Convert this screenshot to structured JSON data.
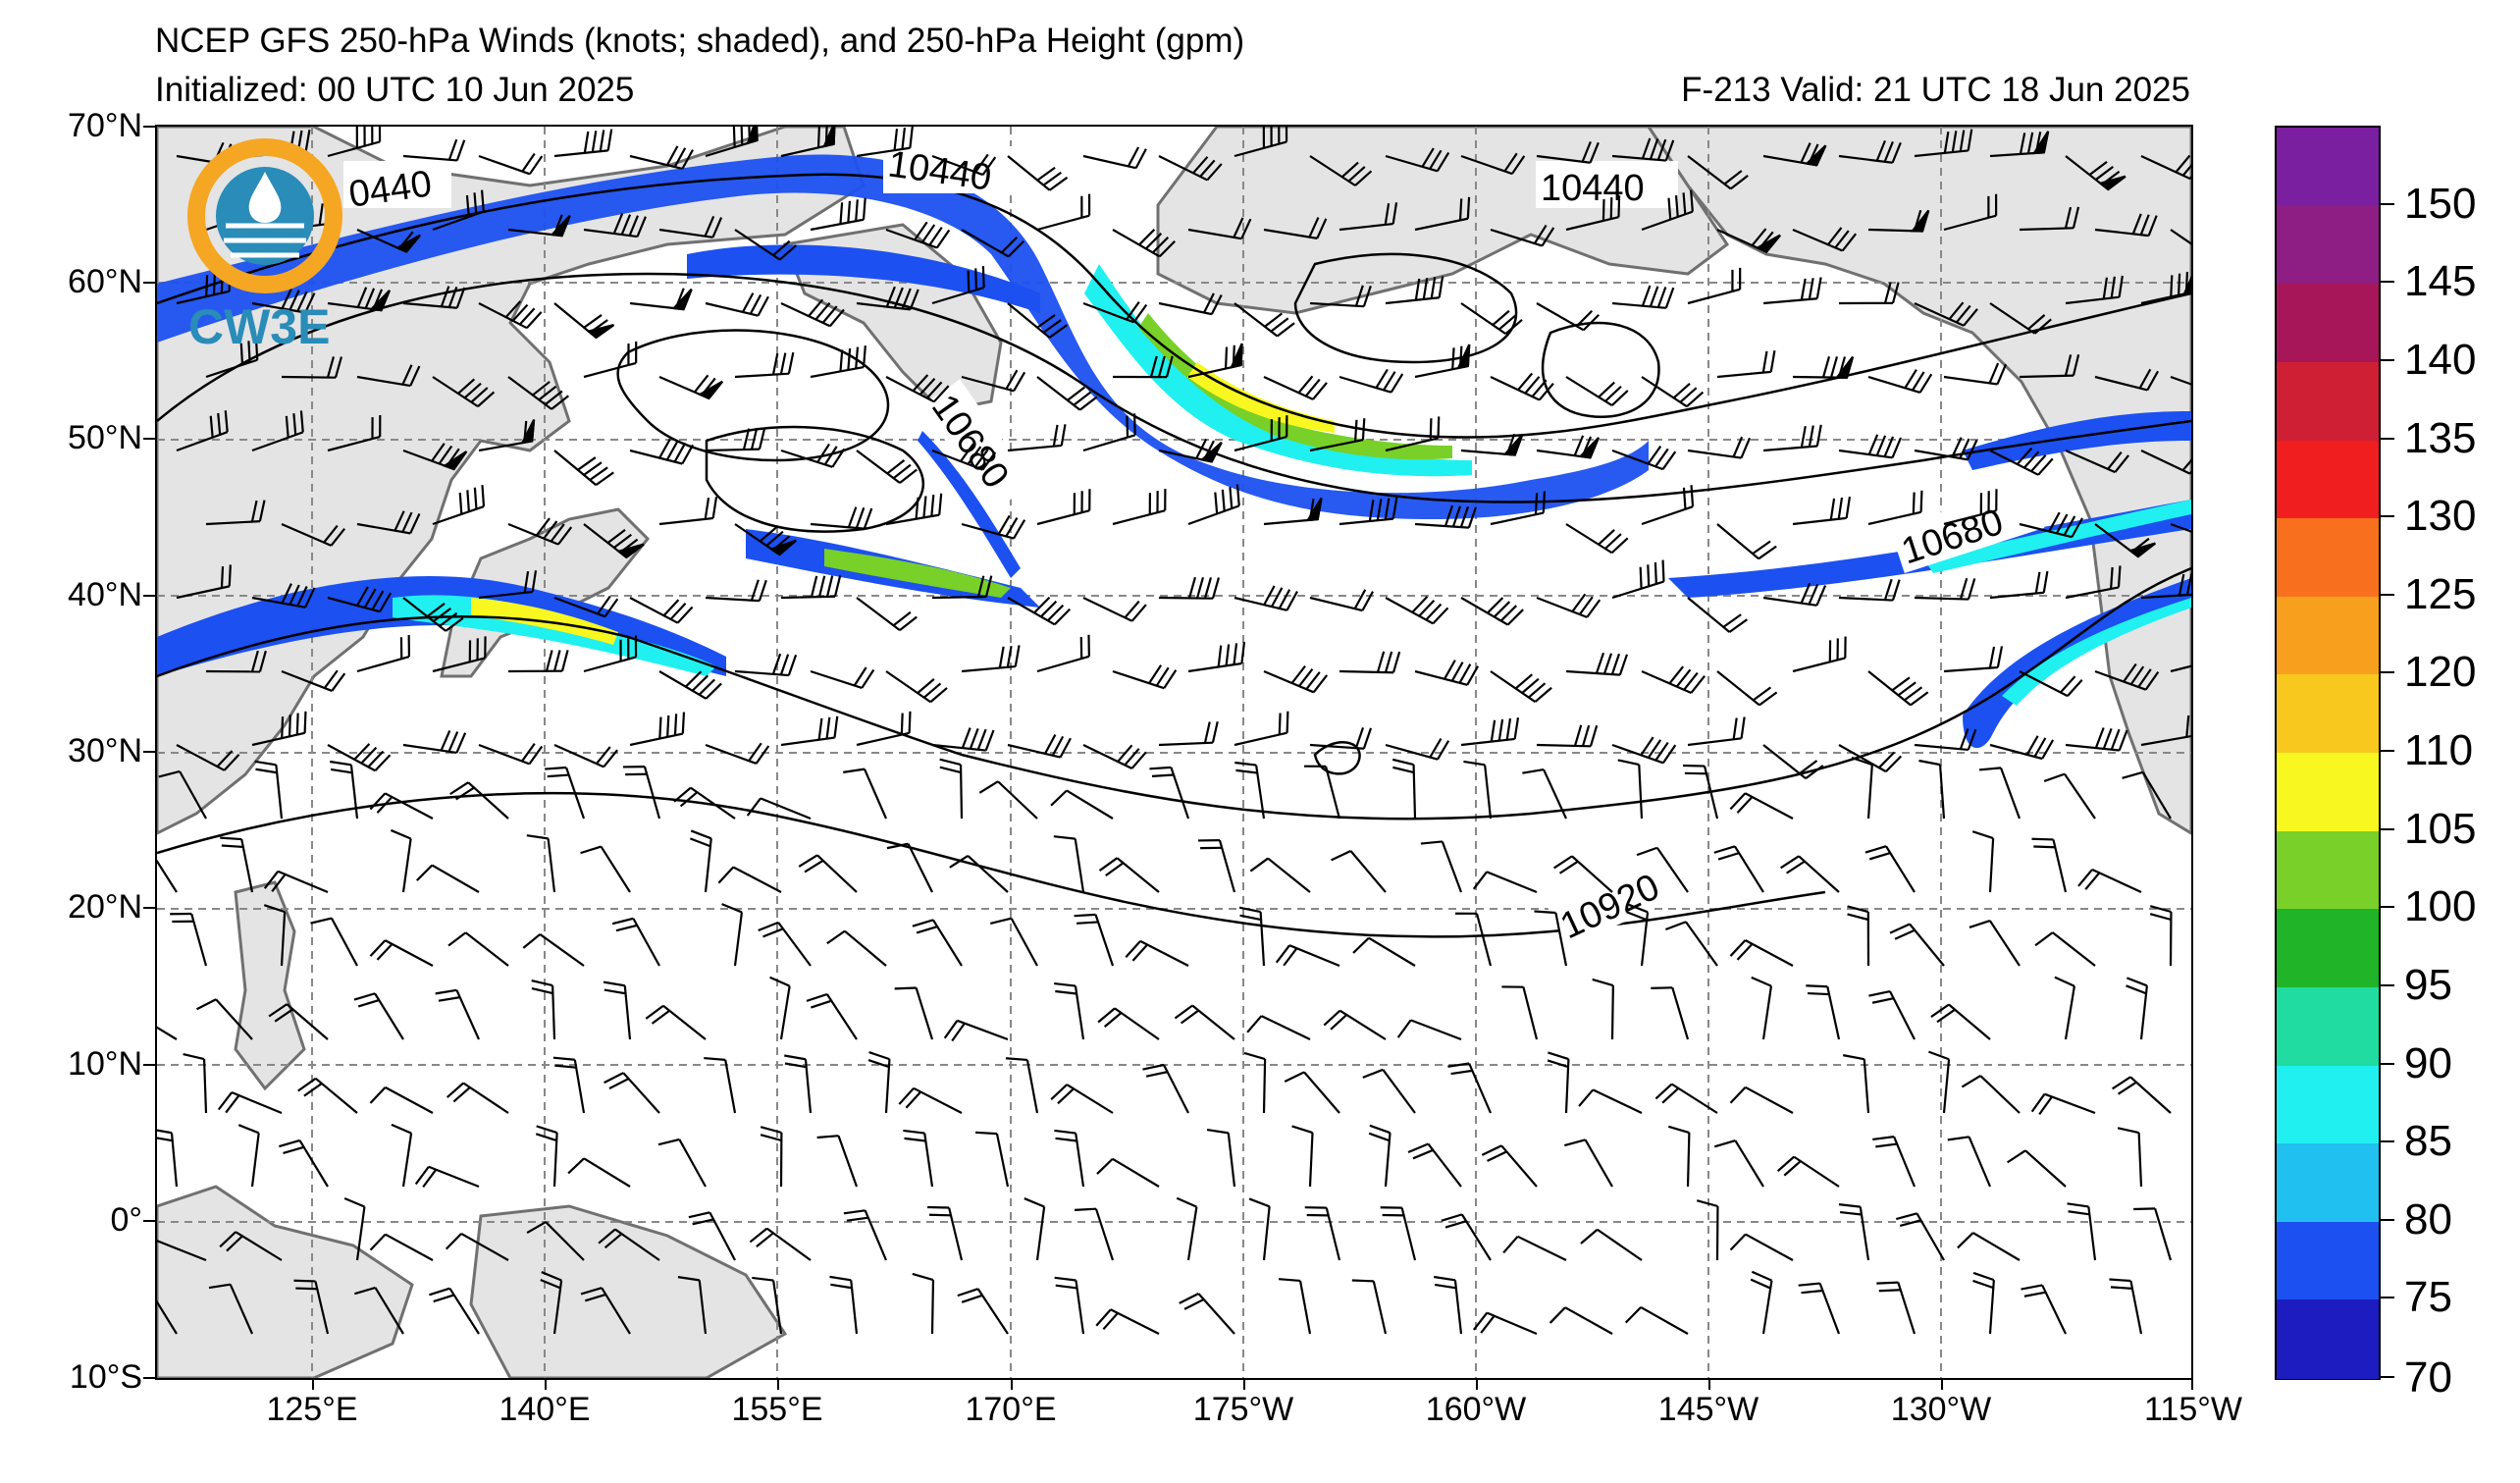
{
  "header": {
    "title": "NCEP GFS 250-hPa Winds (knots; shaded), and 250-hPa Height (gpm)",
    "initialized": "Initialized: 00 UTC 10 Jun 2025",
    "valid": "F-213  Valid: 21 UTC 18 Jun 2025"
  },
  "logo": {
    "text": "CW3E",
    "ring_color": "#f5a623",
    "globe_color": "#2a8cb8"
  },
  "axes": {
    "lat_labels": [
      "70°N",
      "60°N",
      "50°N",
      "40°N",
      "30°N",
      "20°N",
      "10°N",
      "0°",
      "10°S"
    ],
    "lon_labels": [
      "125°E",
      "140°E",
      "155°E",
      "170°E",
      "175°W",
      "160°W",
      "145°W",
      "130°W",
      "115°W"
    ]
  },
  "contour_labels": [
    "0440",
    "10440",
    "10440",
    "10680",
    "10680",
    "10920"
  ],
  "colorbar": {
    "labels": [
      "150",
      "145",
      "140",
      "135",
      "130",
      "125",
      "120",
      "110",
      "105",
      "100",
      "95",
      "90",
      "85",
      "80",
      "75",
      "70"
    ],
    "colors": [
      "#7a1fa0",
      "#8e1e84",
      "#a8165a",
      "#cf1f34",
      "#f01e1e",
      "#f8701e",
      "#f8a01e",
      "#f8c81e",
      "#f8f820",
      "#78d028",
      "#20b428",
      "#20dca0",
      "#20f0f0",
      "#20c0f0",
      "#1c50f0",
      "#1c1cc0"
    ]
  },
  "colors": {
    "land": "#e4e4e4",
    "coast": "#707070",
    "grid": "#888888"
  }
}
